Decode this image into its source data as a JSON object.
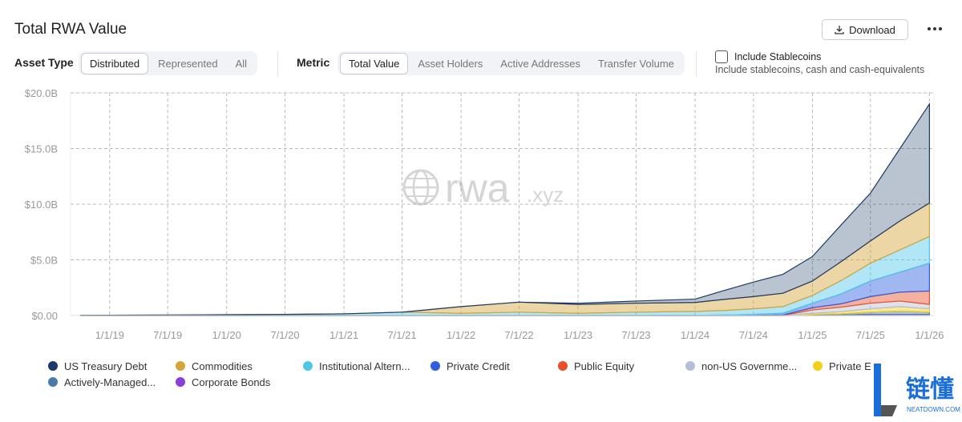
{
  "header": {
    "title": "Total RWA Value",
    "download": "Download"
  },
  "controls": {
    "asset_type": {
      "label": "Asset Type",
      "options": [
        "Distributed",
        "Represented",
        "All"
      ],
      "selected": "Distributed"
    },
    "metric": {
      "label": "Metric",
      "options": [
        "Total Value",
        "Asset Holders",
        "Active Addresses",
        "Transfer Volume"
      ],
      "selected": "Total Value"
    },
    "stablecoins": {
      "label": "Include Stablecoins",
      "description": "Include stablecoins, cash and cash-equivalents"
    }
  },
  "watermark": {
    "main": "rwa",
    "suffix": ".xyz"
  },
  "logo": {
    "text": "链懂",
    "site": "NEATDOWN.COM"
  },
  "chart_data": {
    "type": "stacked-area",
    "x": [
      "10/1/18",
      "1/1/19",
      "7/1/19",
      "1/1/20",
      "7/1/20",
      "1/1/21",
      "7/1/21",
      "1/1/22",
      "7/1/22",
      "1/1/23",
      "7/1/23",
      "1/1/24",
      "4/1/24",
      "7/1/24",
      "10/1/24",
      "1/1/25",
      "4/1/25",
      "7/1/25",
      "10/1/25",
      "1/1/26"
    ],
    "xlim": [
      "9/1/18",
      "1/15/26"
    ],
    "xticks": [
      "1/1/19",
      "7/1/19",
      "1/1/20",
      "7/1/20",
      "1/1/21",
      "7/1/21",
      "1/1/22",
      "7/1/22",
      "1/1/23",
      "7/1/23",
      "1/1/24",
      "7/1/24",
      "1/1/25",
      "7/1/25",
      "1/1/26"
    ],
    "ylim": [
      0,
      20
    ],
    "yticks": [
      {
        "value": 0,
        "label": "$0.00"
      },
      {
        "value": 5,
        "label": "$5.0B"
      },
      {
        "value": 10,
        "label": "$10.0B"
      },
      {
        "value": 15,
        "label": "$15.0B"
      },
      {
        "value": 20,
        "label": "$20.0B"
      }
    ],
    "grid": true,
    "series": [
      {
        "name": "US Treasury Debt",
        "color": "#1c3a66",
        "values": [
          0,
          0,
          0,
          0,
          0,
          0,
          0,
          0,
          0,
          0.1,
          0.2,
          0.3,
          0.8,
          1.3,
          1.7,
          2.2,
          3.3,
          4.3,
          6.5,
          8.9
        ]
      },
      {
        "name": "Commodities",
        "color": "#d4a53a",
        "values": [
          0,
          0,
          0,
          0,
          0,
          0,
          0,
          0.6,
          0.9,
          0.8,
          0.8,
          0.8,
          1.0,
          1.1,
          1.2,
          1.3,
          1.7,
          2.0,
          2.6,
          3.0
        ]
      },
      {
        "name": "Institutional Altern...",
        "color": "#4fc8e8",
        "values": [
          0.02,
          0.03,
          0.05,
          0.07,
          0.1,
          0.15,
          0.3,
          0.2,
          0.3,
          0.2,
          0.3,
          0.35,
          0.4,
          0.5,
          0.6,
          0.7,
          1.2,
          1.6,
          2.0,
          2.4
        ]
      },
      {
        "name": "Private Credit",
        "color": "#2f5fe0",
        "values": [
          0,
          0,
          0,
          0,
          0,
          0,
          0,
          0,
          0,
          0,
          0,
          0.02,
          0.05,
          0.1,
          0.15,
          0.4,
          0.9,
          1.4,
          1.8,
          2.5
        ]
      },
      {
        "name": "Public Equity",
        "color": "#e8502a",
        "values": [
          0,
          0,
          0,
          0,
          0,
          0,
          0,
          0,
          0,
          0,
          0,
          0,
          0,
          0,
          0.05,
          0.2,
          0.3,
          0.6,
          0.8,
          1.2
        ]
      },
      {
        "name": "non-US Governme...",
        "color": "#b4bfd6",
        "values": [
          0,
          0,
          0,
          0,
          0,
          0,
          0,
          0,
          0,
          0,
          0,
          0,
          0,
          0,
          0,
          0.3,
          0.4,
          0.5,
          0.5,
          0.4
        ]
      },
      {
        "name": "Private E",
        "color": "#f2cf1a",
        "values": [
          0,
          0,
          0,
          0,
          0,
          0,
          0,
          0,
          0,
          0,
          0,
          0,
          0,
          0,
          0,
          0.1,
          0.2,
          0.3,
          0.4,
          0.3
        ]
      },
      {
        "name": "Actively-Managed...",
        "color": "#4a7aa8",
        "values": [
          0,
          0,
          0,
          0,
          0,
          0,
          0,
          0,
          0,
          0,
          0,
          0,
          0,
          0,
          0,
          0.05,
          0.1,
          0.2,
          0.3,
          0.2
        ]
      },
      {
        "name": "Corporate Bonds",
        "color": "#8a3fd8",
        "values": [
          0,
          0,
          0,
          0,
          0,
          0,
          0,
          0,
          0,
          0,
          0,
          0,
          0,
          0,
          0,
          0.05,
          0.05,
          0.1,
          0.1,
          0.1
        ]
      }
    ]
  }
}
